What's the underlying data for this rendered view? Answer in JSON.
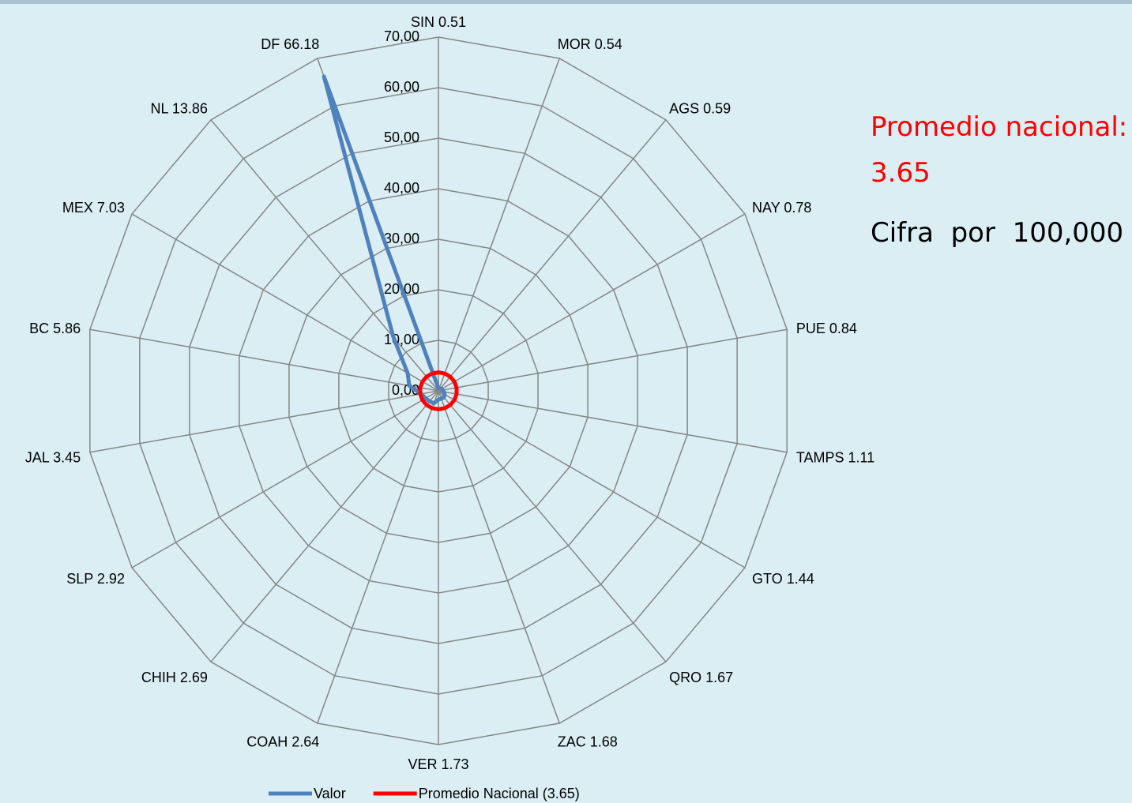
{
  "chart_data": {
    "type": "radar",
    "categories": [
      "SIN 0.51",
      "MOR 0.54",
      "AGS 0.59",
      "NAY 0.78",
      "PUE 0.84",
      "TAMPS 1.11",
      "GTO 1.44",
      "QRO 1.67",
      "ZAC 1.68",
      "VER 1.73",
      "COAH 2.64",
      "CHIH 2.69",
      "SLP 2.92",
      "JAL 3.45",
      "BC 5.86",
      "MEX 7.03",
      "NL 13.86",
      "DF 66.18"
    ],
    "series": [
      {
        "name": "Valor",
        "color": "#4f81bd",
        "values": [
          0.51,
          0.54,
          0.59,
          0.78,
          0.84,
          1.11,
          1.44,
          1.67,
          1.68,
          1.73,
          2.64,
          2.69,
          2.92,
          3.45,
          5.86,
          7.03,
          13.86,
          66.18
        ]
      },
      {
        "name": "Promedio Nacional (3.65)",
        "color": "#ff0000",
        "values": [
          3.65,
          3.65,
          3.65,
          3.65,
          3.65,
          3.65,
          3.65,
          3.65,
          3.65,
          3.65,
          3.65,
          3.65,
          3.65,
          3.65,
          3.65,
          3.65,
          3.65,
          3.65
        ]
      }
    ],
    "ylim": [
      0,
      70
    ],
    "yticks": [
      {
        "value": 0,
        "label": "0,00"
      },
      {
        "value": 10,
        "label": "10,00"
      },
      {
        "value": 20,
        "label": "20,00"
      },
      {
        "value": 30,
        "label": "30,00"
      },
      {
        "value": 40,
        "label": "40,00"
      },
      {
        "value": 50,
        "label": "50,00"
      },
      {
        "value": 60,
        "label": "60,00"
      },
      {
        "value": 70,
        "label": "70,00"
      }
    ],
    "grid": true,
    "legend": "bottom",
    "annotations": [
      {
        "text": "Promedio nacional:   3.65",
        "color": "#ff0000"
      },
      {
        "text": "Cifra  por  100,000",
        "color": "#000000"
      }
    ]
  }
}
